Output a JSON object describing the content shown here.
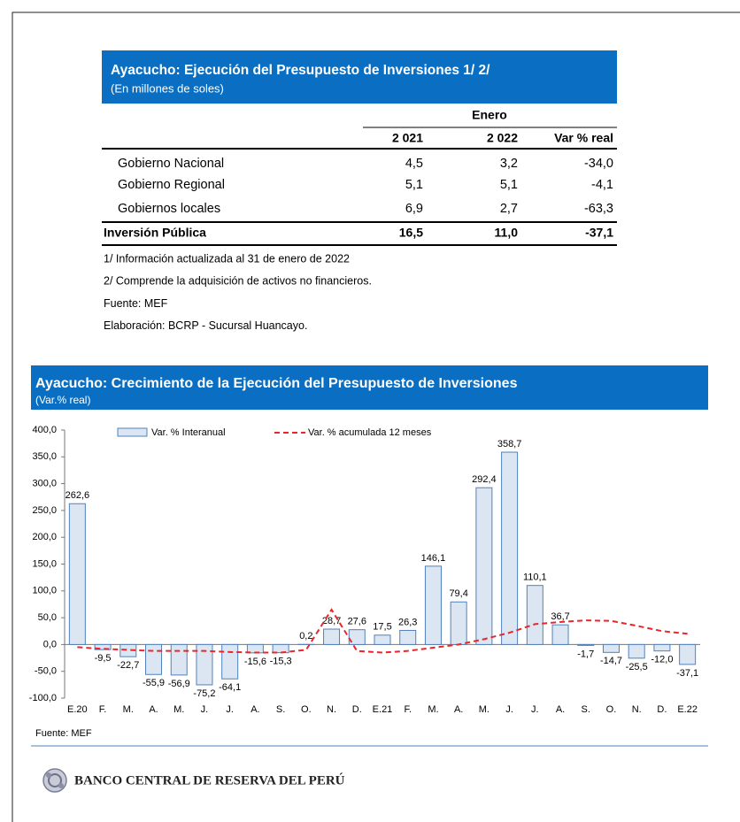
{
  "table": {
    "title": "Ayacucho: Ejecución del Presupuesto de Inversiones 1/ 2/",
    "subtitle": "(En millones de soles)",
    "group_header": "Enero",
    "columns": [
      "2 021",
      "2 022",
      "Var % real"
    ],
    "rows": [
      [
        "Gobierno Nacional",
        "4,5",
        "3,2",
        "-34,0"
      ],
      [
        "Gobierno Regional",
        "5,1",
        "5,1",
        "-4,1"
      ],
      [
        "Gobiernos locales",
        "6,9",
        "2,7",
        "-63,3"
      ]
    ],
    "total": [
      "Inversión Pública",
      "16,5",
      "11,0",
      "-37,1"
    ],
    "notes": [
      "1/ Información actualizada al 31 de enero de 2022",
      "2/ Comprende la adquisición de activos no financieros.",
      "Fuente: MEF",
      "Elaboración: BCRP - Sucursal Huancayo."
    ]
  },
  "chart_data": {
    "type": "bar",
    "title": "Ayacucho: Crecimiento de la Ejecución del Presupuesto de Inversiones",
    "subtitle": "(Var.% real)",
    "categories": [
      "E.20",
      "F.",
      "M.",
      "A.",
      "M.",
      "J.",
      "J.",
      "A.",
      "S.",
      "O.",
      "N.",
      "D.",
      "E.21",
      "F.",
      "M.",
      "A.",
      "M.",
      "J.",
      "J.",
      "A.",
      "S.",
      "O.",
      "N.",
      "D.",
      "E.22"
    ],
    "series": [
      {
        "name": "Var. % Interanual",
        "type": "bar",
        "color": "#4f81bd",
        "fill": "#dce6f2",
        "values": [
          262.6,
          -9.5,
          -22.7,
          -55.9,
          -56.9,
          -75.2,
          -64.1,
          -15.6,
          -15.3,
          0.2,
          28.7,
          27.6,
          17.5,
          26.3,
          146.1,
          79.4,
          292.4,
          358.7,
          110.1,
          36.7,
          -1.7,
          -14.7,
          -25.5,
          -12.0,
          -37.1
        ],
        "value_labels": [
          "262,6",
          "-9,5",
          "-22,7",
          "-55,9",
          "-56,9",
          "-75,2",
          "-64,1",
          "-15,6",
          "-15,3",
          "0,2",
          "28,7",
          "27,6",
          "17,5",
          "26,3",
          "146,1",
          "79,4",
          "292,4",
          "358,7",
          "110,1",
          "36,7",
          "-1,7",
          "-14,7",
          "-25,5",
          "-12,0",
          "-37,1"
        ]
      },
      {
        "name": "Var. % acumulada 12 meses",
        "type": "line",
        "color": "#e8262b",
        "dashed": true,
        "values": [
          -5,
          -8,
          -10,
          -12,
          -12,
          -12,
          -14,
          -15,
          -15,
          -10,
          65,
          -12,
          -15,
          -12,
          -6,
          0,
          10,
          22,
          38,
          42,
          45,
          44,
          35,
          25,
          20
        ]
      }
    ],
    "ylim": [
      -100,
      400
    ],
    "yticks": [
      {
        "value": -100,
        "label": "-100,0"
      },
      {
        "value": -50,
        "label": "-50,0"
      },
      {
        "value": 0,
        "label": "0,0"
      },
      {
        "value": 50,
        "label": "50,0"
      },
      {
        "value": 100,
        "label": "100,0"
      },
      {
        "value": 150,
        "label": "150,0"
      },
      {
        "value": 200,
        "label": "200,0"
      },
      {
        "value": 250,
        "label": "250,0"
      },
      {
        "value": 300,
        "label": "300,0"
      },
      {
        "value": 350,
        "label": "350,0"
      },
      {
        "value": 400,
        "label": "400,0"
      }
    ],
    "legend": "top",
    "source": "Fuente: MEF"
  },
  "footer": {
    "bank": "BANCO CENTRAL DE RESERVA DEL PERÚ"
  }
}
